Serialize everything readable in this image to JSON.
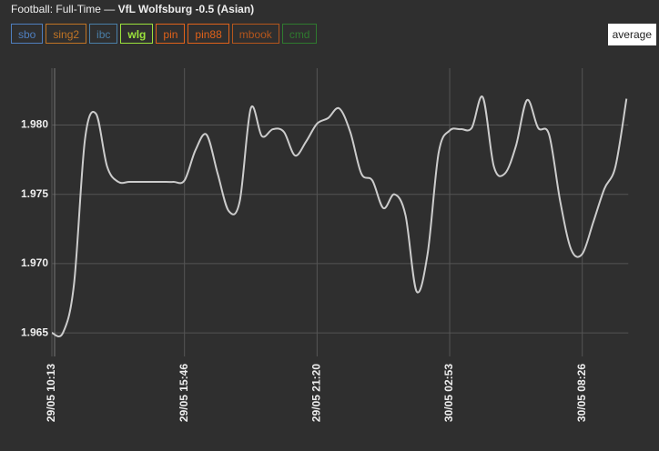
{
  "header": {
    "title": "Football: Full-Time",
    "separator": "—",
    "match": "VfL Wolfsburg -0.5 (Asian)"
  },
  "buttons": [
    {
      "label": "sbo",
      "color": "#4f7fbf"
    },
    {
      "label": "sing2",
      "color": "#c07424"
    },
    {
      "label": "ibc",
      "color": "#4a7fa8"
    },
    {
      "label": "wlg",
      "color": "#9be23c"
    },
    {
      "label": "pin",
      "color": "#e0621a"
    },
    {
      "label": "pin88",
      "color": "#e0621a"
    },
    {
      "label": "mbook",
      "color": "#b5561c"
    },
    {
      "label": "cmd",
      "color": "#2f7a2f"
    }
  ],
  "average_button": "average",
  "chart_data": {
    "type": "line",
    "color": "#cccccc",
    "grid": true,
    "categories": [
      "29/05 10:13",
      null,
      null,
      null,
      null,
      null,
      null,
      null,
      null,
      null,
      null,
      null,
      "29/05 15:46",
      null,
      null,
      null,
      null,
      null,
      null,
      null,
      null,
      null,
      null,
      null,
      "29/05 21:20",
      null,
      null,
      null,
      null,
      null,
      null,
      null,
      null,
      null,
      null,
      null,
      "30/05 02:53",
      null,
      null,
      null,
      null,
      null,
      null,
      null,
      null,
      null,
      null,
      null,
      "30/05 08:26",
      null,
      null,
      null,
      null
    ],
    "values": [
      1.965,
      1.965,
      1.9685,
      1.979,
      1.9808,
      1.977,
      1.9759,
      1.9759,
      1.9759,
      1.9759,
      1.9759,
      1.9759,
      1.976,
      1.9782,
      1.9793,
      1.9765,
      1.9738,
      1.9745,
      1.9812,
      1.9792,
      1.9797,
      1.9795,
      1.9778,
      1.9788,
      1.9801,
      1.9805,
      1.9812,
      1.9795,
      1.9765,
      1.976,
      1.974,
      1.975,
      1.9735,
      1.968,
      1.9707,
      1.978,
      1.9796,
      1.9797,
      1.9798,
      1.982,
      1.977,
      1.9765,
      1.9785,
      1.9818,
      1.9798,
      1.9793,
      1.9745,
      1.971,
      1.9707,
      1.973,
      1.9754,
      1.977,
      1.9819
    ],
    "ylim": [
      1.9633,
      1.9841
    ],
    "yticks": [
      1.965,
      {
        "value": 1.97,
        "label": "1.970"
      },
      1.975,
      {
        "value": 1.98,
        "label": "1.980"
      }
    ]
  }
}
